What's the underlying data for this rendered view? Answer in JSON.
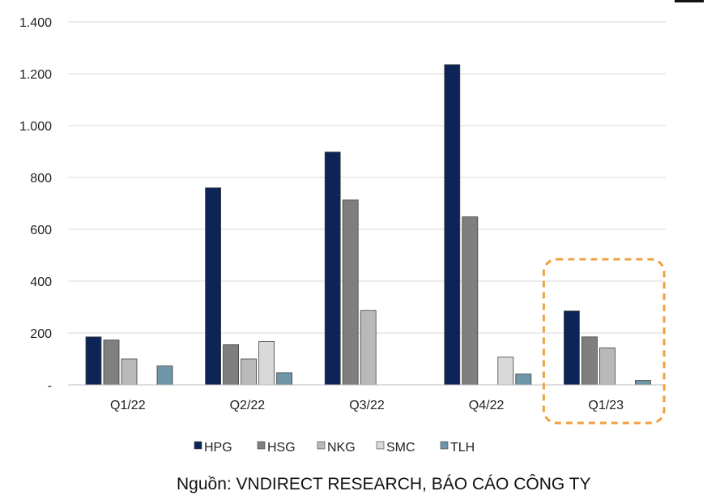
{
  "chart_data": {
    "type": "bar",
    "categories": [
      "Q1/22",
      "Q2/22",
      "Q3/22",
      "Q4/22",
      "Q1/23"
    ],
    "series": [
      {
        "name": "HPG",
        "color": "#0d2556",
        "values": [
          185,
          760,
          898,
          1235,
          285
        ]
      },
      {
        "name": "HSG",
        "color": "#7f7f7f",
        "values": [
          173,
          155,
          713,
          648,
          185
        ]
      },
      {
        "name": "NKG",
        "color": "#b9b9b9",
        "values": [
          100,
          100,
          287,
          0,
          143
        ]
      },
      {
        "name": "SMC",
        "color": "#d9d9d9",
        "values": [
          0,
          167,
          0,
          107,
          0
        ]
      },
      {
        "name": "TLH",
        "color": "#6f95a8",
        "values": [
          73,
          47,
          0,
          42,
          17
        ]
      }
    ],
    "yticks": [
      "-",
      "200",
      "400",
      "600",
      "800",
      "1.000",
      "1.200",
      "1.400"
    ],
    "ylim": [
      0,
      1400
    ],
    "grid": true,
    "legend_position": "bottom",
    "highlight": {
      "category": "Q1/23",
      "color": "#f0a040"
    }
  },
  "source": "Nguồn: VNDIRECT RESEARCH, BÁO CÁO CÔNG TY"
}
